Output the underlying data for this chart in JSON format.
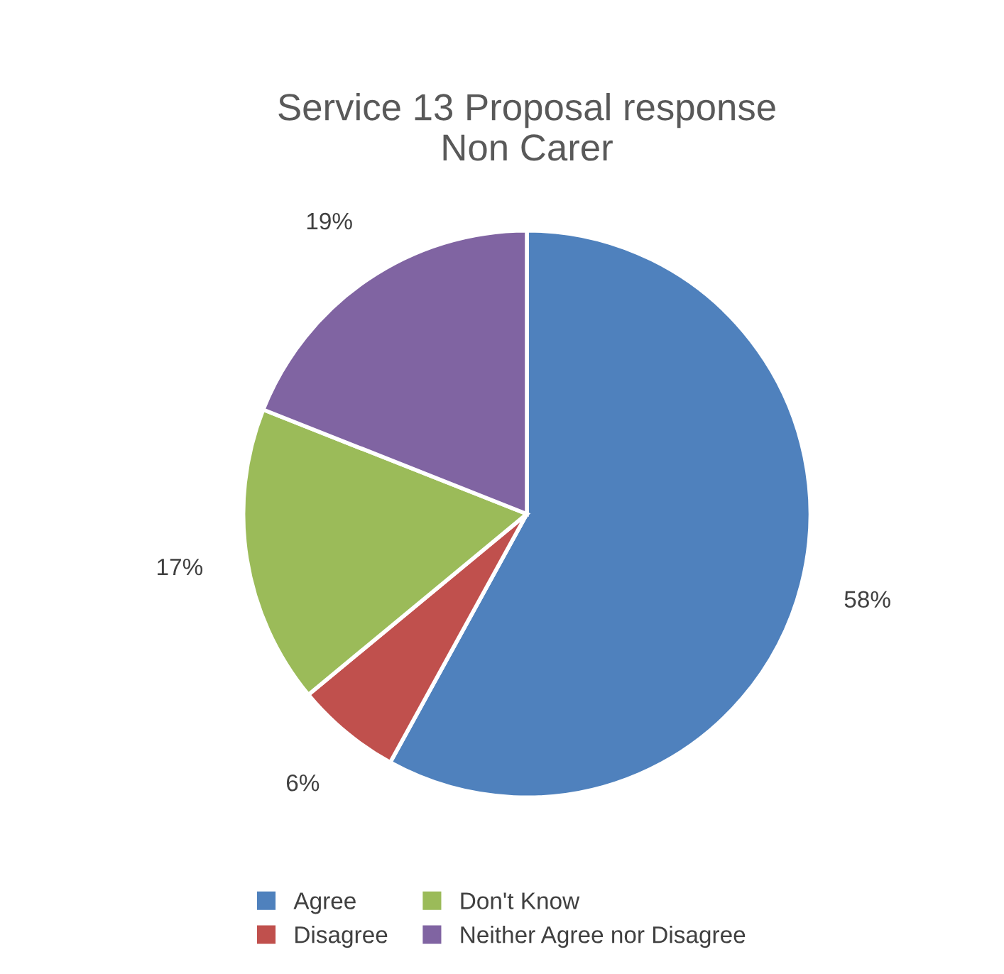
{
  "chart_data": {
    "type": "pie",
    "title": "Service 13 Proposal response\nNon Carer",
    "categories": [
      "Agree",
      "Disagree",
      "Don't Know",
      "Neither Agree nor Disagree"
    ],
    "values": [
      58,
      6,
      17,
      19
    ],
    "colors": [
      "#4f81bd",
      "#c0504d",
      "#9bbb59",
      "#8064a2"
    ],
    "value_labels": [
      "58%",
      "6%",
      "17%",
      "19%"
    ],
    "legend": "bottom"
  }
}
